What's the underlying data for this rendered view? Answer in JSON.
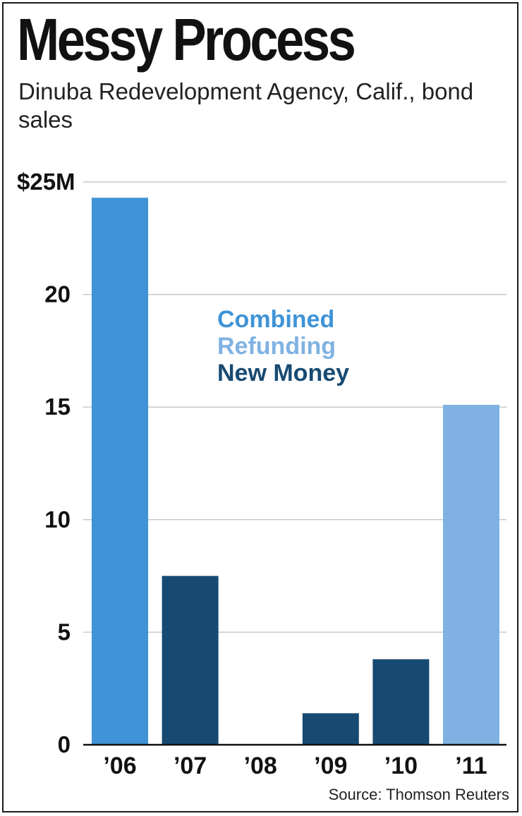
{
  "title": "Messy Process",
  "subtitle": "Dinuba Redevelopment Agency, Calif., bond sales",
  "source": "Source: Thomson Reuters",
  "colors": {
    "combined": "#3f93d6",
    "refunding": "#7fb2e2",
    "new_money": "#174a72",
    "grid": "#c8c8c8",
    "axis": "#111111"
  },
  "chart_data": {
    "type": "bar",
    "title": "Messy Process",
    "subtitle": "Dinuba Redevelopment Agency, Calif., bond sales",
    "categories": [
      "’06",
      "’07",
      "’08",
      "’09",
      "’10",
      "’11"
    ],
    "values": [
      24.3,
      7.5,
      0,
      1.4,
      3.8,
      15.1
    ],
    "bar_types": [
      "Combined",
      "New Money",
      "",
      "New Money",
      "New Money",
      "Refunding"
    ],
    "ylim": [
      0,
      25
    ],
    "yticks": [
      0,
      5,
      10,
      15,
      20,
      25
    ],
    "ytick_labels": [
      "0",
      "5",
      "10",
      "15",
      "20",
      "$25M"
    ],
    "grid": true,
    "legend": {
      "placement": "center",
      "entries": [
        {
          "label": "Combined",
          "color": "#3f93d6"
        },
        {
          "label": "Refunding",
          "color": "#7fb2e2"
        },
        {
          "label": "New Money",
          "color": "#174a72"
        }
      ]
    }
  }
}
